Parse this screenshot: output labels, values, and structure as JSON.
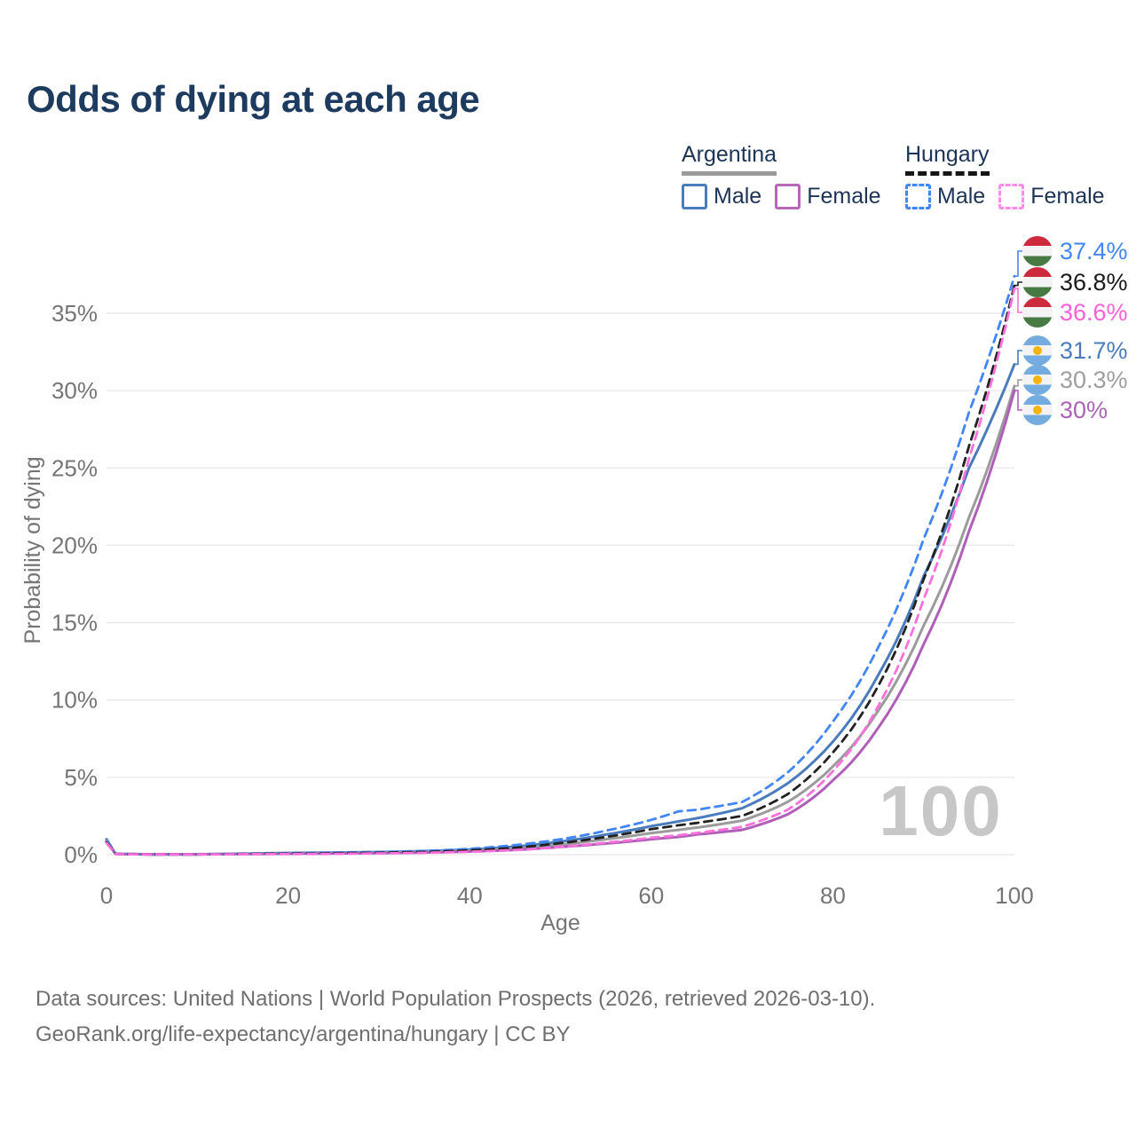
{
  "legend": {
    "groups": [
      {
        "country": "Argentina",
        "items": [
          {
            "label": "Male"
          },
          {
            "label": "Female"
          }
        ]
      },
      {
        "country": "Hungary",
        "items": [
          {
            "label": "Male"
          },
          {
            "label": "Female"
          }
        ]
      }
    ]
  },
  "chart_data": {
    "type": "line",
    "title": "Odds of dying at each age",
    "xlabel": "Age",
    "ylabel": "Probability of dying",
    "xlim": [
      0,
      100
    ],
    "ylim_pct": [
      0,
      37.4
    ],
    "x_ticks": [
      0,
      20,
      40,
      60,
      80,
      100
    ],
    "y_ticks_pct": [
      0,
      5,
      10,
      15,
      20,
      25,
      30,
      35
    ],
    "grid": true,
    "legend_position": "top-right",
    "watermark_age": "100",
    "x_ages": [
      0,
      1,
      5,
      10,
      15,
      20,
      25,
      30,
      35,
      40,
      45,
      50,
      55,
      60,
      63,
      65,
      70,
      75,
      80,
      85,
      90,
      95,
      100
    ],
    "series": [
      {
        "name": "Hungary Male",
        "country": "Hungary",
        "sex": "male",
        "style": "dashed",
        "color": "#4285f4",
        "label_color": "#4285f4",
        "end_label": "37.4%",
        "values": [
          0.85,
          0.05,
          0.02,
          0.02,
          0.05,
          0.1,
          0.13,
          0.16,
          0.24,
          0.38,
          0.62,
          1.0,
          1.55,
          2.25,
          2.8,
          2.9,
          3.4,
          5.3,
          8.6,
          13.4,
          20.4,
          28.6,
          37.4
        ]
      },
      {
        "name": "Hungary",
        "country": "Hungary",
        "sex": "both",
        "style": "dashed",
        "color": "#222222",
        "label_color": "#1a1a1a",
        "end_label": "36.8%",
        "values": [
          0.8,
          0.045,
          0.018,
          0.018,
          0.04,
          0.07,
          0.09,
          0.12,
          0.18,
          0.28,
          0.45,
          0.75,
          1.15,
          1.65,
          1.9,
          2.05,
          2.5,
          3.9,
          6.6,
          10.9,
          17.8,
          26.4,
          36.8
        ]
      },
      {
        "name": "Hungary Female",
        "country": "Hungary",
        "sex": "female",
        "style": "dashed",
        "color": "#ff70dd",
        "label_color": "#ff5fd8",
        "end_label": "36.6%",
        "values": [
          0.75,
          0.04,
          0.015,
          0.015,
          0.03,
          0.04,
          0.05,
          0.08,
          0.12,
          0.19,
          0.3,
          0.5,
          0.78,
          1.1,
          1.25,
          1.4,
          1.8,
          2.9,
          5.4,
          9.6,
          16.5,
          25.6,
          36.6
        ]
      },
      {
        "name": "Argentina Male",
        "country": "Argentina",
        "sex": "male",
        "style": "solid",
        "color": "#4a7cbd",
        "label_color": "#4a7cbd",
        "end_label": "31.7%",
        "values": [
          1.0,
          0.06,
          0.025,
          0.03,
          0.07,
          0.11,
          0.14,
          0.17,
          0.23,
          0.33,
          0.52,
          0.85,
          1.3,
          1.85,
          2.15,
          2.35,
          3.0,
          4.6,
          7.3,
          11.6,
          18.0,
          25.0,
          31.7
        ]
      },
      {
        "name": "Argentina",
        "country": "Argentina",
        "sex": "both",
        "style": "solid",
        "color": "#9b9b9b",
        "label_color": "#9e9e9e",
        "end_label": "30.3%",
        "values": [
          0.9,
          0.05,
          0.02,
          0.025,
          0.05,
          0.08,
          0.11,
          0.13,
          0.18,
          0.26,
          0.4,
          0.65,
          1.0,
          1.4,
          1.6,
          1.75,
          2.2,
          3.4,
          5.7,
          9.3,
          14.8,
          21.8,
          30.3
        ]
      },
      {
        "name": "Argentina Female",
        "country": "Argentina",
        "sex": "female",
        "style": "solid",
        "color": "#b05fb8",
        "label_color": "#a964b4",
        "end_label": "30%",
        "values": [
          0.85,
          0.045,
          0.018,
          0.02,
          0.04,
          0.06,
          0.08,
          0.1,
          0.14,
          0.2,
          0.31,
          0.5,
          0.72,
          1.0,
          1.15,
          1.3,
          1.6,
          2.6,
          4.8,
          8.2,
          13.6,
          20.9,
          30.0
        ]
      }
    ]
  },
  "footer": {
    "line1": "Data sources: United Nations | World Population Prospects (2026, retrieved 2026-03-10).",
    "line2": "GeoRank.org/life-expectancy/argentina/hungary | CC BY"
  }
}
